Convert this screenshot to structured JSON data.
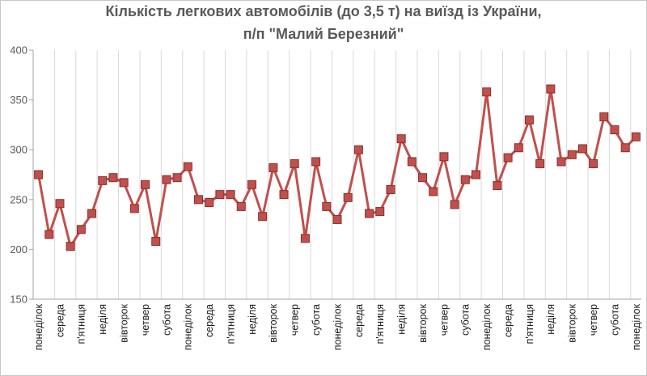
{
  "chart_data": {
    "type": "line",
    "title_line1": "Кількість легкових автомобілів (до 3,5 т) на виїзд із України,",
    "title_line2": "п/п \"Малий Березний\"",
    "xlabel": "",
    "ylabel": "",
    "ylim": [
      150,
      400
    ],
    "yticks": [
      150,
      200,
      250,
      300,
      350,
      400
    ],
    "grid": "vertical",
    "legend": "none",
    "color": "#c0504d",
    "marker_color": "#c0504d",
    "marker": "square",
    "tick_labels": [
      "понеділок",
      "середа",
      "п'ятниця",
      "неділя",
      "вівторок",
      "четвер",
      "субота",
      "понеділок",
      "середа",
      "п'ятниця",
      "неділя",
      "вівторок",
      "четвер",
      "субота",
      "понеділок",
      "середа",
      "п'ятниця",
      "неділя",
      "вівторок",
      "четвер",
      "субота",
      "понеділок",
      "середа",
      "п'ятниця",
      "неділя",
      "вівторок",
      "четвер",
      "субота",
      "понеділок"
    ],
    "values": [
      275,
      215,
      246,
      203,
      220,
      236,
      269,
      272,
      267,
      241,
      265,
      208,
      270,
      272,
      283,
      250,
      247,
      255,
      255,
      243,
      265,
      233,
      282,
      255,
      286,
      211,
      288,
      243,
      230,
      252,
      300,
      236,
      238,
      260,
      311,
      288,
      272,
      258,
      293,
      245,
      270,
      275,
      358,
      264,
      292,
      302,
      330,
      286,
      361,
      288,
      295,
      301,
      286,
      333,
      320,
      302,
      313
    ]
  }
}
